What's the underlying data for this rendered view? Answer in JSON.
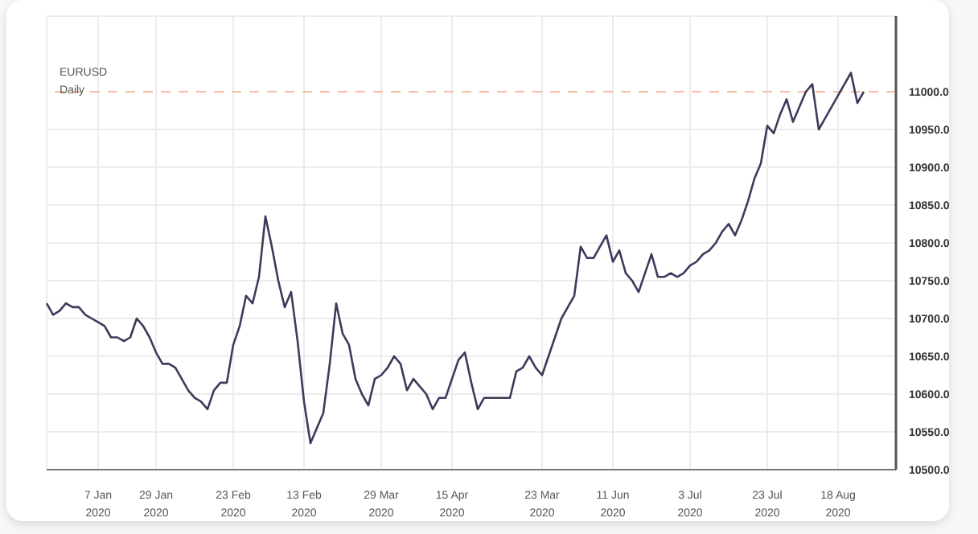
{
  "chart_data": {
    "type": "line",
    "title": "EURUSD",
    "subtitle": "Daily",
    "categories": [
      null,
      null,
      null,
      null,
      null,
      null,
      null,
      null,
      "7 Jan 2020",
      null,
      null,
      null,
      null,
      null,
      null,
      null,
      null,
      "29 Jan 2020",
      null,
      null,
      null,
      null,
      null,
      null,
      null,
      null,
      null,
      null,
      null,
      "23 Feb 2020",
      null,
      null,
      null,
      null,
      null,
      null,
      null,
      null,
      null,
      null,
      "13 Feb 2020",
      null,
      null,
      null,
      null,
      null,
      null,
      null,
      null,
      null,
      null,
      null,
      "29 Mar 2020",
      null,
      null,
      null,
      null,
      null,
      null,
      null,
      null,
      null,
      null,
      "15 Apr 2020",
      null,
      null,
      null,
      null,
      null,
      null,
      null,
      null,
      null,
      null,
      null,
      null,
      null,
      "23 Mar 2020",
      null,
      null,
      null,
      null,
      null,
      null,
      null,
      null,
      null,
      null,
      "11 Jun 2020",
      null,
      null,
      null,
      null,
      null,
      null,
      null,
      null,
      null,
      null,
      null,
      "3 Jul 2020",
      null,
      null,
      null,
      null,
      null,
      null,
      null,
      null,
      null,
      null,
      null,
      "23 Jul 2020",
      null,
      null,
      null,
      null,
      null,
      null,
      null,
      null,
      null,
      null,
      "18 Aug 2020",
      null,
      null,
      null,
      null,
      null,
      null,
      null,
      null,
      null
    ],
    "series": [
      {
        "color": "#3b3b5c",
        "values": [
          10720,
          10705,
          10710,
          10720,
          10715,
          10715,
          10705,
          10700,
          10695,
          10690,
          10675,
          10675,
          10670,
          10675,
          10700,
          10690,
          10675,
          10655,
          10640,
          10640,
          10635,
          10620,
          10605,
          10595,
          10590,
          10580,
          10605,
          10615,
          10615,
          10665,
          10690,
          10730,
          10720,
          10755,
          10835,
          10795,
          10750,
          10715,
          10735,
          10670,
          10590,
          10535,
          10555,
          10575,
          10640,
          10720,
          10680,
          10665,
          10620,
          10600,
          10585,
          10620,
          10625,
          10635,
          10650,
          10640,
          10605,
          10620,
          10610,
          10600,
          10580,
          10595,
          10595,
          10620,
          10645,
          10655,
          10615,
          10580,
          10595,
          10595,
          10595,
          10595,
          10595,
          10630,
          10635,
          10650,
          10635,
          10625,
          10650,
          10675,
          10700,
          10715,
          10730,
          10795,
          10780,
          10780,
          10795,
          10810,
          10775,
          10790,
          10760,
          10750,
          10735,
          10760,
          10785,
          10755,
          10755,
          10760,
          10755,
          10760,
          10770,
          10775,
          10785,
          10790,
          10800,
          10815,
          10825,
          10810,
          10830,
          10855,
          10885,
          10905,
          10955,
          10945,
          10970,
          10990,
          10960,
          10980,
          11000,
          11010,
          10950,
          10965,
          10980,
          10995,
          11010,
          11025,
          10985,
          11000,
          null,
          null,
          null,
          null,
          null
        ]
      }
    ],
    "ylim": [
      10500,
      11100
    ],
    "yticks": [
      {
        "value": 10500,
        "label": "10500.0"
      },
      {
        "value": 10550,
        "label": "10550.0"
      },
      {
        "value": 10600,
        "label": "10600.0"
      },
      {
        "value": 10650,
        "label": "10650.0"
      },
      {
        "value": 10700,
        "label": "10700.0"
      },
      {
        "value": 10750,
        "label": "10750.0"
      },
      {
        "value": 10800,
        "label": "10800.0"
      },
      {
        "value": 10850,
        "label": "10850.0"
      },
      {
        "value": 10900,
        "label": "10900.0"
      },
      {
        "value": 10950,
        "label": "10950.0"
      }
    ],
    "ref_lines": [
      {
        "axis": "y",
        "value": 11000,
        "label": "11000.0",
        "color": "#f9b8a8",
        "line_style": "dashed"
      }
    ],
    "grid": true,
    "legend": false,
    "marker": "none",
    "line_style": "solid",
    "tick_labels": "xy"
  }
}
